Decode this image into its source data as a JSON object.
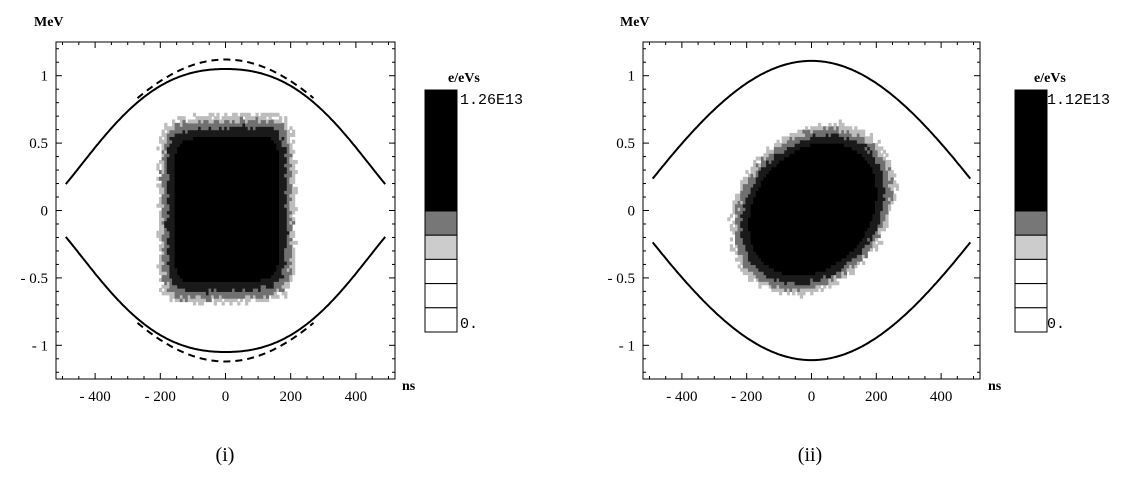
{
  "chart_data": [
    {
      "type": "heatmap",
      "caption": "(i)",
      "ylabel": "MeV",
      "xlabel": "ns",
      "xlim": [
        -520,
        520
      ],
      "ylim": [
        -1.25,
        1.25
      ],
      "x_ticks": [
        -400,
        -200,
        0,
        200,
        400
      ],
      "x_tick_labels": [
        "- 400",
        "- 200",
        "0",
        "200",
        "400"
      ],
      "y_ticks": [
        1,
        0.5,
        0,
        -0.5,
        -1
      ],
      "y_tick_labels": [
        "1",
        "0.5",
        "0",
        "- 0.5",
        "- 1"
      ],
      "colorbar": {
        "label": "e/eVs",
        "max_label": "1.26E13",
        "min_label": "0.",
        "levels": 10
      },
      "distribution": {
        "shape": "rect",
        "center": [
          0,
          0
        ],
        "half_width_ns": 190,
        "half_height_MeV": 0.63,
        "skew": 0.12
      },
      "curves": [
        {
          "style": "solid",
          "amplitude_MeV": 1.05,
          "x_range": [
            -490,
            490
          ],
          "flat_top": true
        },
        {
          "style": "dashed",
          "amplitude_MeV": 1.12,
          "x_range": [
            -270,
            270
          ]
        }
      ]
    },
    {
      "type": "heatmap",
      "caption": "(ii)",
      "ylabel": "MeV",
      "xlabel": "ns",
      "xlim": [
        -520,
        520
      ],
      "ylim": [
        -1.25,
        1.25
      ],
      "x_ticks": [
        -400,
        -200,
        0,
        200,
        400
      ],
      "x_tick_labels": [
        "- 400",
        "- 200",
        "0",
        "200",
        "400"
      ],
      "y_ticks": [
        1,
        0.5,
        0,
        -0.5,
        -1
      ],
      "y_tick_labels": [
        "1",
        "0.5",
        "0",
        "- 0.5",
        "- 1"
      ],
      "colorbar": {
        "label": "e/eVs",
        "max_label": "1.12E13",
        "min_label": "0.",
        "levels": 10
      },
      "distribution": {
        "shape": "tilted-ellipse",
        "center": [
          0,
          0
        ],
        "half_width_ns": 240,
        "half_height_MeV": 0.72,
        "tilt": 0.45
      },
      "curves": [
        {
          "style": "solid",
          "amplitude_MeV": 1.11,
          "x_range": [
            -490,
            490
          ]
        }
      ]
    }
  ]
}
